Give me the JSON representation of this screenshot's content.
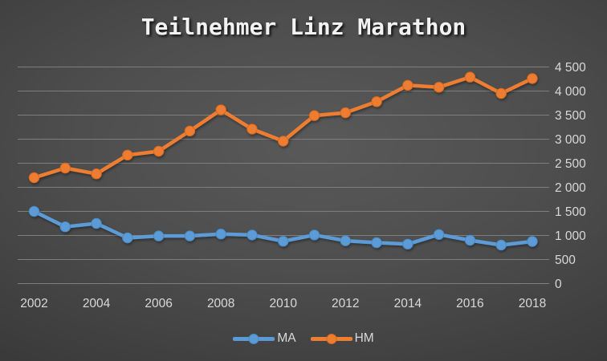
{
  "title": "Teilnehmer Linz Marathon",
  "colors": {
    "background_center": "#595959",
    "background_edge": "#252525",
    "gridline": "#7E7E7E",
    "axis_label": "#D9D9D9",
    "title_text": "#F2F2F2",
    "ma_blue": "#5B9BD5",
    "hm_orange": "#ED7D31"
  },
  "chart_data": {
    "type": "line",
    "title": "Teilnehmer Linz Marathon",
    "x": [
      2002,
      2003,
      2004,
      2005,
      2006,
      2007,
      2008,
      2009,
      2010,
      2011,
      2012,
      2013,
      2014,
      2015,
      2016,
      2017,
      2018
    ],
    "x_tick_labels": [
      "2002",
      "2004",
      "2006",
      "2008",
      "2010",
      "2012",
      "2014",
      "2016",
      "2018"
    ],
    "ylim": [
      0,
      4500
    ],
    "y_tick_step": 500,
    "y_tick_labels": [
      "0",
      "500",
      "1 000",
      "1 500",
      "2 000",
      "2 500",
      "3 000",
      "3 500",
      "4 000",
      "4 500"
    ],
    "grid": true,
    "y_axis_side": "right",
    "legend_position": "bottom",
    "series": [
      {
        "name": "MA",
        "color": "#5B9BD5",
        "marker_stroke": "#4A89C4",
        "values": [
          1500,
          1180,
          1250,
          950,
          990,
          990,
          1030,
          1010,
          880,
          1010,
          890,
          850,
          820,
          1020,
          900,
          800,
          875
        ]
      },
      {
        "name": "HM",
        "color": "#ED7D31",
        "marker_stroke": "#D9691F",
        "values": [
          2200,
          2400,
          2280,
          2670,
          2750,
          3170,
          3610,
          3210,
          2960,
          3490,
          3550,
          3780,
          4120,
          4080,
          4290,
          3950,
          4260
        ]
      }
    ]
  },
  "legend": {
    "items": [
      {
        "label": "MA",
        "color": "#5B9BD5"
      },
      {
        "label": "HM",
        "color": "#ED7D31"
      }
    ]
  }
}
